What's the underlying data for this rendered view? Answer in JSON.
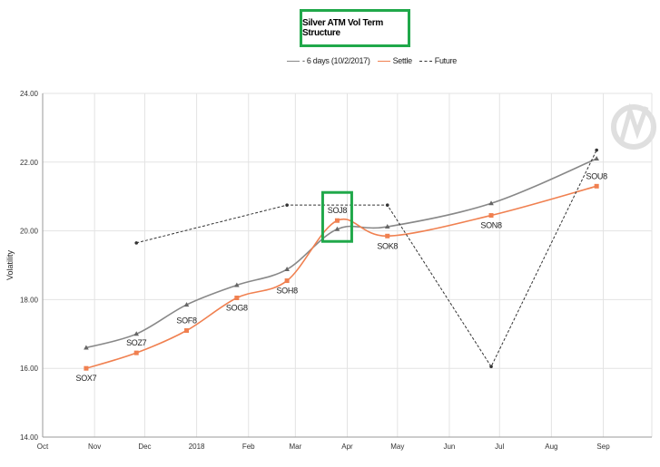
{
  "chart_data": {
    "type": "line",
    "title": "Silver ATM Vol Term Structure",
    "ylabel": "Volatility",
    "xlabel": "",
    "ylim": [
      14,
      24
    ],
    "yticks": [
      "14.00",
      "16.00",
      "18.00",
      "20.00",
      "22.00",
      "24.00"
    ],
    "xticks": [
      "Oct",
      "Nov",
      "Dec",
      "2018",
      "Feb",
      "Mar",
      "Apr",
      "May",
      "Jun",
      "Jul",
      "Aug",
      "Sep"
    ],
    "grid": true,
    "legend_position": "top-center",
    "series": [
      {
        "name": "- 6 days (10/2/2017)",
        "color": "#888888",
        "style": "solid",
        "marker": "triangle",
        "points": [
          {
            "x": "2017-10-27",
            "y": 16.6
          },
          {
            "x": "2017-11-26",
            "y": 17.0
          },
          {
            "x": "2017-12-26",
            "y": 17.85
          },
          {
            "x": "2018-01-25",
            "y": 18.42
          },
          {
            "x": "2018-02-24",
            "y": 18.88
          },
          {
            "x": "2018-03-26",
            "y": 20.05
          },
          {
            "x": "2018-04-25",
            "y": 20.12
          },
          {
            "x": "2018-06-26",
            "y": 20.8
          },
          {
            "x": "2018-08-28",
            "y": 22.1
          }
        ]
      },
      {
        "name": "Settle",
        "color": "#f08050",
        "style": "solid",
        "marker": "square",
        "points": [
          {
            "x": "2017-10-27",
            "y": 16.0
          },
          {
            "x": "2017-11-26",
            "y": 16.45
          },
          {
            "x": "2017-12-26",
            "y": 17.1
          },
          {
            "x": "2018-01-25",
            "y": 18.05
          },
          {
            "x": "2018-02-24",
            "y": 18.55
          },
          {
            "x": "2018-03-26",
            "y": 20.3
          },
          {
            "x": "2018-04-25",
            "y": 19.85
          },
          {
            "x": "2018-06-26",
            "y": 20.45
          },
          {
            "x": "2018-08-28",
            "y": 21.3
          }
        ]
      },
      {
        "name": "Future",
        "color": "#333333",
        "style": "dashed",
        "marker": "dot",
        "points": [
          {
            "x": "2017-11-26",
            "y": 19.65
          },
          {
            "x": "2018-02-24",
            "y": 20.75
          },
          {
            "x": "2018-04-25",
            "y": 20.75
          },
          {
            "x": "2018-06-26",
            "y": 16.05
          },
          {
            "x": "2018-08-28",
            "y": 22.35
          }
        ]
      }
    ],
    "annotations": [
      {
        "text": "SOX7",
        "x": "2017-10-27",
        "y": 16.0,
        "position": "below"
      },
      {
        "text": "SOZ7",
        "x": "2017-11-26",
        "y": 16.45,
        "position": "above"
      },
      {
        "text": "SOF8",
        "x": "2017-12-26",
        "y": 17.1,
        "position": "above"
      },
      {
        "text": "SOG8",
        "x": "2018-01-25",
        "y": 18.05,
        "position": "below"
      },
      {
        "text": "SOH8",
        "x": "2018-02-24",
        "y": 18.55,
        "position": "below"
      },
      {
        "text": "SOJ8",
        "x": "2018-03-26",
        "y": 20.3,
        "position": "above",
        "highlight": true,
        "highlight_color": "#20a84a"
      },
      {
        "text": "SOK8",
        "x": "2018-04-25",
        "y": 19.85,
        "position": "below"
      },
      {
        "text": "SON8",
        "x": "2018-06-26",
        "y": 20.45,
        "position": "below"
      },
      {
        "text": "SOU8",
        "x": "2018-08-28",
        "y": 21.3,
        "position": "above"
      }
    ]
  }
}
